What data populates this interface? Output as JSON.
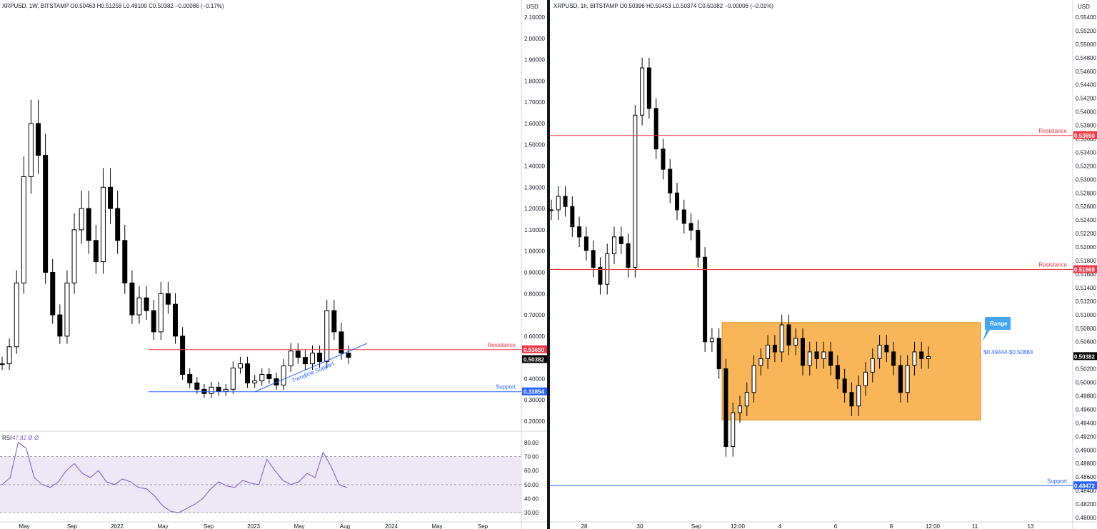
{
  "colors": {
    "up": "#ffffff",
    "down": "#000000",
    "candle_border": "#000000",
    "resistance": "#f23645",
    "support": "#2962ff",
    "rsi_line": "#7e57c2",
    "rsi_band": "#ede7f6",
    "range_fill": "#f7a93b",
    "callout": "#42a5f5",
    "panel_divider": "#131722"
  },
  "left": {
    "header": "XRPUSD, 1W, BITSTAMP  O0.50463  H0.51258  L0.49100  C0.50382  −0.00086 (−0.17%)",
    "currency": "USD",
    "y_ticks": [
      "2.10000",
      "2.00000",
      "1.90000",
      "1.80000",
      "1.70000",
      "1.60000",
      "1.50000",
      "1.40000",
      "1.30000",
      "1.20000",
      "1.10000",
      "1.00000",
      "0.90000",
      "0.80000",
      "0.70000",
      "0.60000",
      "0.50000",
      "0.40000",
      "0.30000",
      "0.20000"
    ],
    "x_ticks": [
      "May",
      "Sep",
      "2022",
      "May",
      "Sep",
      "2023",
      "May",
      "Aug",
      "2024",
      "May",
      "Sep"
    ],
    "resistance_label": "Resistance",
    "resistance_value": "0.53650",
    "support_label": "Support",
    "support_value": "0.33854",
    "last_price": "0.50382",
    "trendline_label": "Trendline Support",
    "rsi": {
      "label": "RSI",
      "value": "47.82",
      "extra1": "Ø",
      "extra2": "Ø",
      "ticks": [
        "80.00",
        "70.00",
        "60.00",
        "50.00",
        "40.00",
        "30.00"
      ]
    }
  },
  "right": {
    "header": "XRPUSD, 1h, BITSTAMP  O0.50396  H0.50453  L0.50374  C0.50382  −0.00006 (−0.01%)",
    "currency": "USD",
    "y_ticks": [
      "0.55400",
      "0.55200",
      "0.55000",
      "0.54800",
      "0.54600",
      "0.54400",
      "0.54200",
      "0.54000",
      "0.53800",
      "0.53600",
      "0.53400",
      "0.53200",
      "0.53000",
      "0.52800",
      "0.52600",
      "0.52400",
      "0.52200",
      "0.52000",
      "0.51800",
      "0.51600",
      "0.51400",
      "0.51200",
      "0.51000",
      "0.50800",
      "0.50600",
      "0.50400",
      "0.50200",
      "0.50000",
      "0.49800",
      "0.49600",
      "0.49400",
      "0.49200",
      "0.49000",
      "0.48800",
      "0.48600",
      "0.48400",
      "0.48200",
      "0.48000"
    ],
    "x_ticks": [
      "28",
      "30",
      "Sep",
      "12:00",
      "4",
      "6",
      "8",
      "12:00",
      "11",
      "13"
    ],
    "resistance_top_label": "Resistance",
    "resistance_top_value": "0.53650",
    "resistance_mid_label": "Resistance",
    "resistance_mid_value": "0.51668",
    "support_label": "Support",
    "support_value": "0.48472",
    "last_price": "0.50382",
    "range_callout": "Range",
    "range_text": "$0.49444-$0.50884"
  },
  "chart_data": [
    {
      "type": "candlestick",
      "title": "XRPUSD, 1W, BITSTAMP",
      "ylim": [
        0.2,
        2.1
      ],
      "series": [
        {
          "name": "XRPUSD 1W",
          "close": [
            0.47,
            0.55,
            0.85,
            1.35,
            1.6,
            1.45,
            0.9,
            0.7,
            0.6,
            0.85,
            1.1,
            1.2,
            1.05,
            0.95,
            1.3,
            1.2,
            1.05,
            0.85,
            0.7,
            0.78,
            0.72,
            0.62,
            0.8,
            0.75,
            0.6,
            0.42,
            0.38,
            0.35,
            0.33,
            0.36,
            0.34,
            0.35,
            0.45,
            0.47,
            0.38,
            0.39,
            0.42,
            0.4,
            0.37,
            0.46,
            0.53,
            0.5,
            0.47,
            0.52,
            0.48,
            0.72,
            0.62,
            0.52,
            0.5
          ]
        }
      ],
      "resistance": 0.5365,
      "support": 0.33854,
      "last": 0.50382
    },
    {
      "type": "line",
      "title": "RSI",
      "ylim": [
        25,
        85
      ],
      "series": [
        {
          "name": "RSI",
          "values": [
            50,
            55,
            80,
            76,
            55,
            50,
            48,
            52,
            60,
            65,
            58,
            55,
            60,
            52,
            50,
            54,
            52,
            48,
            47,
            42,
            35,
            31,
            30,
            33,
            36,
            40,
            47,
            52,
            49,
            48,
            53,
            51,
            50,
            68,
            60,
            53,
            50,
            52,
            58,
            55,
            73,
            63,
            50,
            47.82
          ]
        }
      ]
    },
    {
      "type": "candlestick",
      "title": "XRPUSD, 1h, BITSTAMP",
      "ylim": [
        0.48,
        0.555
      ],
      "series": [
        {
          "name": "XRPUSD 1h",
          "close": [
            0.5255,
            0.5275,
            0.526,
            0.523,
            0.5215,
            0.5195,
            0.517,
            0.5145,
            0.519,
            0.5215,
            0.5205,
            0.517,
            0.5395,
            0.5465,
            0.5405,
            0.5345,
            0.5315,
            0.528,
            0.5255,
            0.5235,
            0.5225,
            0.5185,
            0.506,
            0.5065,
            0.502,
            0.4905,
            0.4955,
            0.4965,
            0.4985,
            0.5025,
            0.5035,
            0.5055,
            0.5045,
            0.5085,
            0.5055,
            0.5065,
            0.5025,
            0.5045,
            0.5035,
            0.5045,
            0.5025,
            0.5005,
            0.4985,
            0.4965,
            0.4995,
            0.5015,
            0.5035,
            0.5055,
            0.5045,
            0.5025,
            0.4985,
            0.5025,
            0.5045,
            0.5035,
            0.5038
          ]
        }
      ],
      "resistance": [
        0.5365,
        0.51668
      ],
      "support": 0.48472,
      "range": [
        0.49444,
        0.50884
      ],
      "last": 0.50382
    }
  ]
}
